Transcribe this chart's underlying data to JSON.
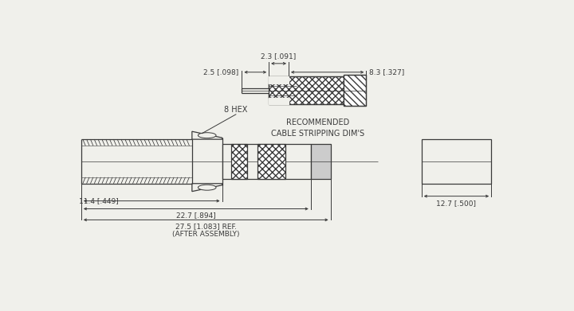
{
  "bg_color": "#f0f0eb",
  "line_color": "#3a3a3a",
  "title": "RECOMMENDED\nCABLE STRIPPING DIM'S",
  "dim_2_3": "2.3 [.091]",
  "dim_2_5": "2.5 [.098]",
  "dim_8_3": "8.3 [.327]",
  "dim_11_4": "11.4 [.449]",
  "dim_22_7": "22.7 [.894]",
  "dim_27_5_line1": "27.5 [1.083] REF.",
  "dim_27_5_line2": "(AFTER ASSEMBLY)",
  "dim_12_7": "12.7 [.500]",
  "label_hex": "8 HEX"
}
